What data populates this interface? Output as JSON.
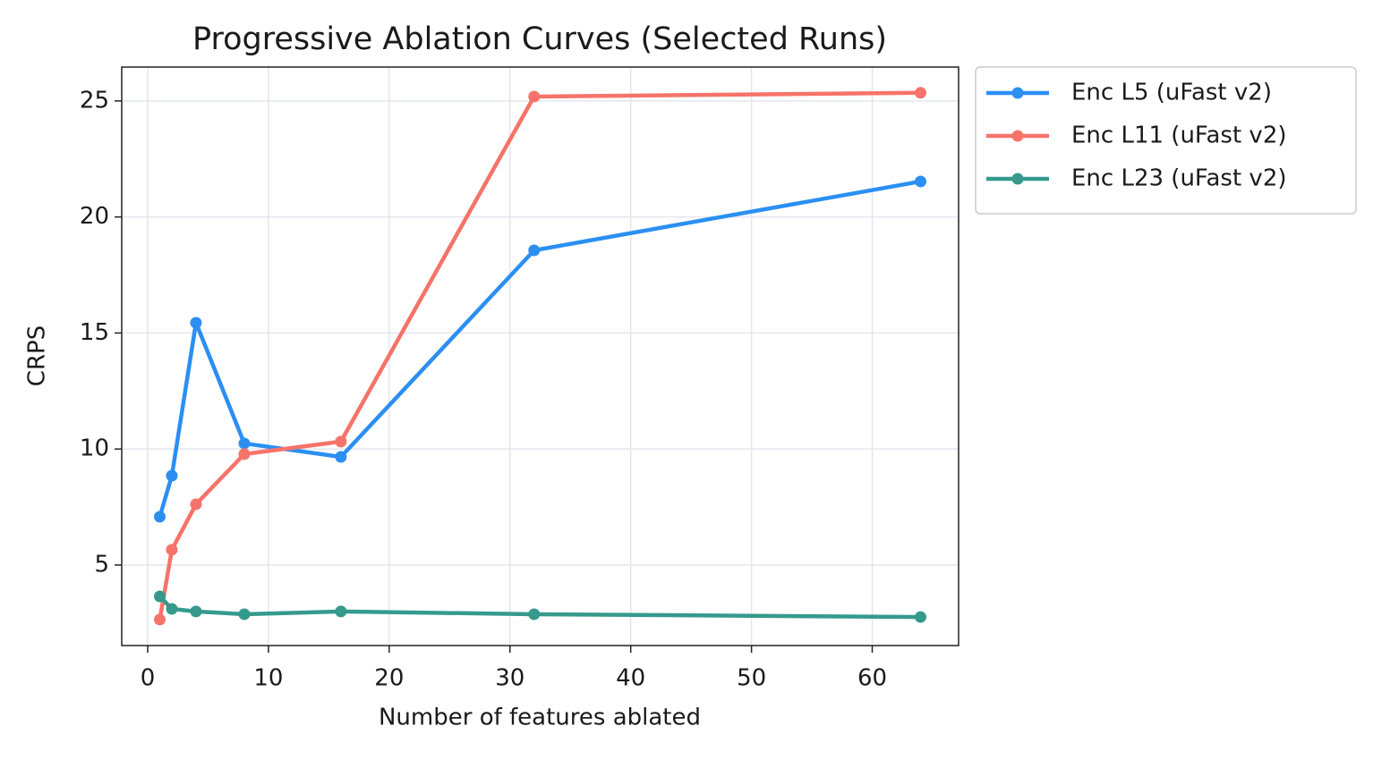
{
  "chart_data": {
    "type": "line",
    "title": "Progressive Ablation Curves (Selected Runs)",
    "xlabel": "Number of features ablated",
    "ylabel": "CRPS",
    "x": [
      1,
      2,
      4,
      8,
      16,
      32,
      64
    ],
    "series": [
      {
        "name": "Enc L5 (uFast v2)",
        "color": "#2b8ff2",
        "values": [
          7.08,
          8.85,
          15.44,
          10.24,
          9.66,
          18.56,
          21.53
        ]
      },
      {
        "name": "Enc L11 (uFast v2)",
        "color": "#f6736a",
        "values": [
          2.65,
          5.66,
          7.62,
          9.78,
          10.32,
          25.19,
          25.35
        ]
      },
      {
        "name": "Enc L23 (uFast v2)",
        "color": "#359a8c",
        "values": [
          3.65,
          3.11,
          3.0,
          2.88,
          3.0,
          2.88,
          2.76
        ]
      }
    ],
    "xlim": [
      -2.15,
      67.15
    ],
    "xticks": [
      0,
      10,
      20,
      30,
      40,
      50,
      60
    ],
    "ylim": [
      1.53,
      26.46
    ],
    "yticks": [
      5,
      10,
      15,
      20,
      25
    ],
    "grid": true,
    "legend": "outside upper right"
  }
}
